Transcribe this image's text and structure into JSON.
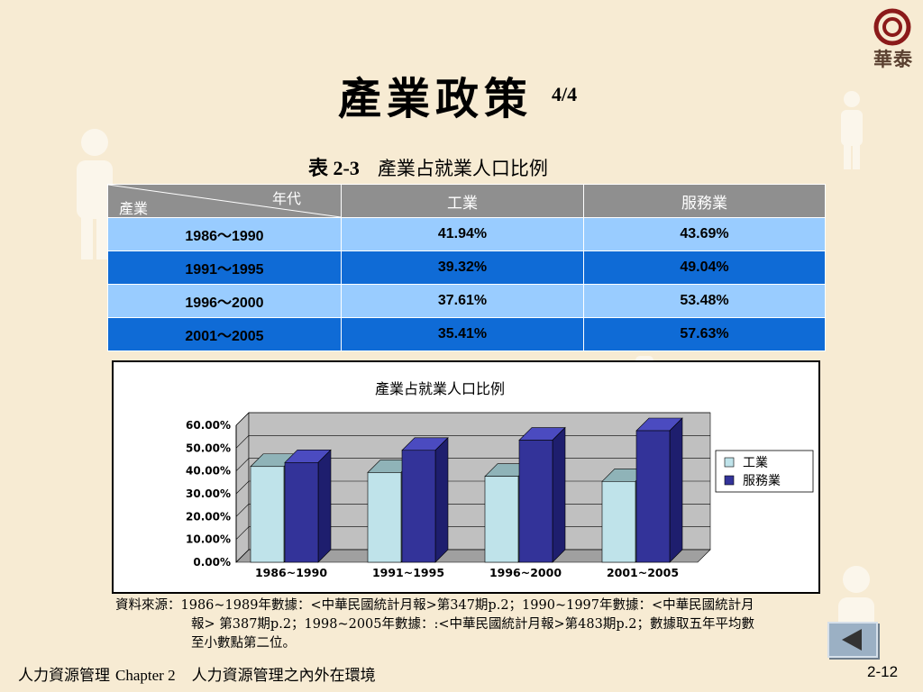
{
  "logo": {
    "text": "華泰"
  },
  "title": {
    "main": "產業政策",
    "page": "4/4"
  },
  "table": {
    "caption_number": "表 2-3",
    "caption_text": "產業占就業人口比例",
    "header_row_label": "產業",
    "header_col_label": "年代",
    "columns": [
      "工業",
      "服務業"
    ],
    "rows": [
      {
        "period": "1986～1990",
        "industry": "41.94%",
        "service": "43.69%"
      },
      {
        "period": "1991～1995",
        "industry": "39.32%",
        "service": "49.04%"
      },
      {
        "period": "1996～2000",
        "industry": "37.61%",
        "service": "53.48%"
      },
      {
        "period": "2001～2005",
        "industry": "35.41%",
        "service": "57.63%"
      }
    ]
  },
  "chart_data": {
    "type": "bar",
    "title": "產業占就業人口比例",
    "categories": [
      "1986~1990",
      "1991~1995",
      "1996~2000",
      "2001~2005"
    ],
    "series": [
      {
        "name": "工業",
        "values": [
          41.94,
          39.32,
          37.61,
          35.41
        ],
        "color": "#bfe3ea"
      },
      {
        "name": "服務業",
        "values": [
          43.69,
          49.04,
          53.48,
          57.63
        ],
        "color": "#333399"
      }
    ],
    "yticks": [
      "0.00%",
      "10.00%",
      "20.00%",
      "30.00%",
      "40.00%",
      "50.00%",
      "60.00%"
    ],
    "ylim": [
      0,
      60
    ],
    "legend": "right",
    "grid": true
  },
  "source": {
    "line1": "資料來源：1986~1989年數據：<中華民國統計月報>第347期p.2；1990~1997年數據：<中華民國統計月",
    "line2": "報> 第387期p.2；1998~2005年數據：:<中華民國統計月報>第483期p.2；數據取五年平均數",
    "line3": "至小數點第二位。"
  },
  "footer": {
    "book": "人力資源管理",
    "chapter": "Chapter 2",
    "chapter_title": "人力資源管理之內外在環境",
    "page": "2-12"
  },
  "colors": {
    "background": "#f7ebd3",
    "table_header": "#8f8f8f",
    "row_light": "#99ccff",
    "row_dark": "#0f6bd6"
  }
}
